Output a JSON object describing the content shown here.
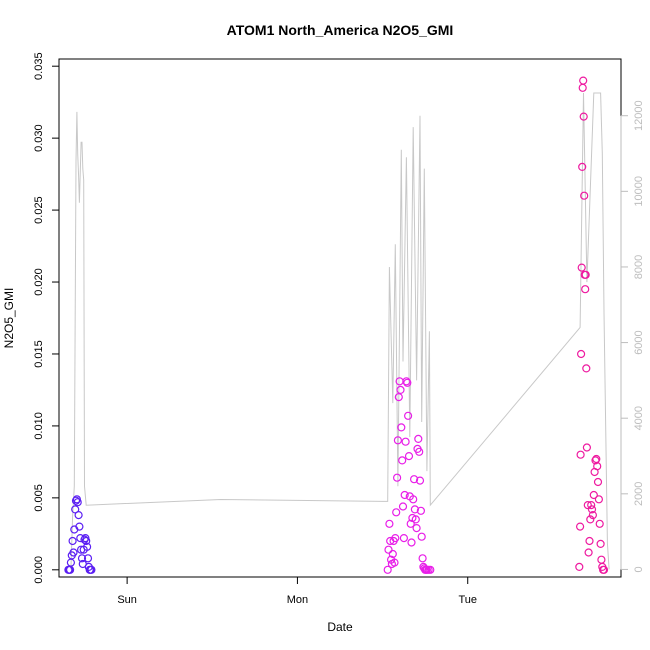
{
  "chart_data": {
    "type": "scatter",
    "title": "ATOM1 North_America N2O5_GMI",
    "xlabel": "Date",
    "ylabel": "N2O5_GMI",
    "x_axis": {
      "range_days": [
        -0.4,
        2.9
      ],
      "ticks": [
        {
          "value": 0,
          "label": "Sun"
        },
        {
          "value": 1,
          "label": "Mon"
        },
        {
          "value": 2,
          "label": "Tue"
        }
      ]
    },
    "y_left": {
      "range": [
        -0.0005,
        0.0355
      ],
      "ticks": [
        "0.000",
        "0.005",
        "0.010",
        "0.015",
        "0.020",
        "0.025",
        "0.030",
        "0.035"
      ]
    },
    "y_right": {
      "range": [
        -200,
        13500
      ],
      "ticks": [
        "0",
        "2000",
        "4000",
        "6000",
        "8000",
        "10000",
        "12000"
      ],
      "color": "#bdbdbd"
    },
    "altitude_trace": {
      "color": "#c8c8c8",
      "points": [
        [
          -0.33,
          0
        ],
        [
          -0.32,
          1400
        ],
        [
          -0.31,
          2200
        ],
        [
          -0.3,
          10800
        ],
        [
          -0.295,
          12100
        ],
        [
          -0.29,
          11000
        ],
        [
          -0.285,
          10400
        ],
        [
          -0.28,
          9700
        ],
        [
          -0.27,
          11300
        ],
        [
          -0.265,
          11300
        ],
        [
          -0.26,
          10600
        ],
        [
          -0.255,
          10300
        ],
        [
          -0.25,
          2200
        ],
        [
          -0.24,
          1700
        ],
        [
          0.55,
          1850
        ],
        [
          1.53,
          1800
        ],
        [
          1.54,
          8000
        ],
        [
          1.56,
          4400
        ],
        [
          1.575,
          8600
        ],
        [
          1.59,
          2200
        ],
        [
          1.61,
          11100
        ],
        [
          1.62,
          5500
        ],
        [
          1.64,
          10900
        ],
        [
          1.66,
          3500
        ],
        [
          1.68,
          11700
        ],
        [
          1.7,
          5000
        ],
        [
          1.72,
          12000
        ],
        [
          1.73,
          3900
        ],
        [
          1.745,
          10600
        ],
        [
          1.76,
          2600
        ],
        [
          1.775,
          6300
        ],
        [
          1.78,
          1700
        ],
        [
          2.66,
          6400
        ],
        [
          2.68,
          12600
        ],
        [
          2.7,
          7600
        ],
        [
          2.74,
          12600
        ],
        [
          2.78,
          12600
        ],
        [
          2.79,
          11000
        ],
        [
          2.8,
          6800
        ],
        [
          2.82,
          700
        ],
        [
          2.83,
          0
        ]
      ]
    },
    "series": [
      {
        "color": "#5b1ff3",
        "points": [
          [
            -0.345,
            0.0
          ],
          [
            -0.34,
            0.0
          ],
          [
            -0.335,
            0.0
          ],
          [
            -0.33,
            0.0005
          ],
          [
            -0.325,
            0.001
          ],
          [
            -0.32,
            0.002
          ],
          [
            -0.315,
            0.0012
          ],
          [
            -0.31,
            0.0028
          ],
          [
            -0.305,
            0.0042
          ],
          [
            -0.3,
            0.0048
          ],
          [
            -0.295,
            0.0049
          ],
          [
            -0.29,
            0.0047
          ],
          [
            -0.285,
            0.0038
          ],
          [
            -0.28,
            0.003
          ],
          [
            -0.275,
            0.0022
          ],
          [
            -0.27,
            0.0014
          ],
          [
            -0.265,
            0.0008
          ],
          [
            -0.26,
            0.0004
          ],
          [
            -0.255,
            0.0014
          ],
          [
            -0.25,
            0.0021
          ],
          [
            -0.245,
            0.0022
          ],
          [
            -0.24,
            0.002
          ],
          [
            -0.235,
            0.0016
          ],
          [
            -0.23,
            0.0008
          ],
          [
            -0.225,
            0.0002
          ],
          [
            -0.22,
            0.0
          ],
          [
            -0.215,
            0.0
          ],
          [
            -0.21,
            0.0
          ]
        ]
      },
      {
        "color": "#e81ee8",
        "points": [
          [
            1.53,
            0.0
          ],
          [
            1.535,
            0.0014
          ],
          [
            1.54,
            0.0032
          ],
          [
            1.545,
            0.002
          ],
          [
            1.55,
            0.0007
          ],
          [
            1.555,
            0.0004
          ],
          [
            1.56,
            0.0011
          ],
          [
            1.565,
            0.002
          ],
          [
            1.57,
            0.0005
          ],
          [
            1.575,
            0.0022
          ],
          [
            1.58,
            0.004
          ],
          [
            1.585,
            0.0064
          ],
          [
            1.59,
            0.009
          ],
          [
            1.595,
            0.012
          ],
          [
            1.6,
            0.0131
          ],
          [
            1.605,
            0.0125
          ],
          [
            1.61,
            0.0099
          ],
          [
            1.615,
            0.0076
          ],
          [
            1.62,
            0.0044
          ],
          [
            1.625,
            0.0022
          ],
          [
            1.63,
            0.0052
          ],
          [
            1.635,
            0.0089
          ],
          [
            1.64,
            0.0131
          ],
          [
            1.645,
            0.013
          ],
          [
            1.65,
            0.0107
          ],
          [
            1.655,
            0.0079
          ],
          [
            1.66,
            0.0051
          ],
          [
            1.665,
            0.0032
          ],
          [
            1.67,
            0.0019
          ],
          [
            1.675,
            0.0036
          ],
          [
            1.68,
            0.0049
          ],
          [
            1.685,
            0.0063
          ],
          [
            1.69,
            0.0042
          ],
          [
            1.695,
            0.0035
          ],
          [
            1.7,
            0.0029
          ],
          [
            1.705,
            0.0084
          ],
          [
            1.71,
            0.0091
          ],
          [
            1.715,
            0.0082
          ],
          [
            1.72,
            0.0062
          ],
          [
            1.725,
            0.0041
          ],
          [
            1.73,
            0.0023
          ],
          [
            1.735,
            0.0008
          ],
          [
            1.74,
            0.0002
          ],
          [
            1.745,
            0.0001
          ],
          [
            1.75,
            0.0
          ],
          [
            1.755,
            0.0
          ],
          [
            1.76,
            0.0
          ],
          [
            1.77,
            0.0
          ],
          [
            1.78,
            0.0
          ]
        ]
      },
      {
        "color": "#ee1aa0",
        "points": [
          [
            2.655,
            0.0002
          ],
          [
            2.66,
            0.003
          ],
          [
            2.663,
            0.008
          ],
          [
            2.666,
            0.015
          ],
          [
            2.669,
            0.021
          ],
          [
            2.672,
            0.028
          ],
          [
            2.675,
            0.0335
          ],
          [
            2.678,
            0.034
          ],
          [
            2.681,
            0.0315
          ],
          [
            2.684,
            0.026
          ],
          [
            2.687,
            0.0205
          ],
          [
            2.69,
            0.0195
          ],
          [
            2.693,
            0.0205
          ],
          [
            2.696,
            0.014
          ],
          [
            2.7,
            0.0085
          ],
          [
            2.705,
            0.0045
          ],
          [
            2.71,
            0.0012
          ],
          [
            2.715,
            0.002
          ],
          [
            2.72,
            0.0035
          ],
          [
            2.725,
            0.0045
          ],
          [
            2.73,
            0.0042
          ],
          [
            2.735,
            0.0038
          ],
          [
            2.74,
            0.0052
          ],
          [
            2.745,
            0.0068
          ],
          [
            2.75,
            0.0076
          ],
          [
            2.755,
            0.0077
          ],
          [
            2.76,
            0.0072
          ],
          [
            2.765,
            0.0061
          ],
          [
            2.77,
            0.0049
          ],
          [
            2.775,
            0.0032
          ],
          [
            2.78,
            0.0018
          ],
          [
            2.785,
            0.0007
          ],
          [
            2.79,
            0.0002
          ],
          [
            2.795,
            0.0
          ],
          [
            2.8,
            0.0
          ]
        ]
      }
    ]
  }
}
